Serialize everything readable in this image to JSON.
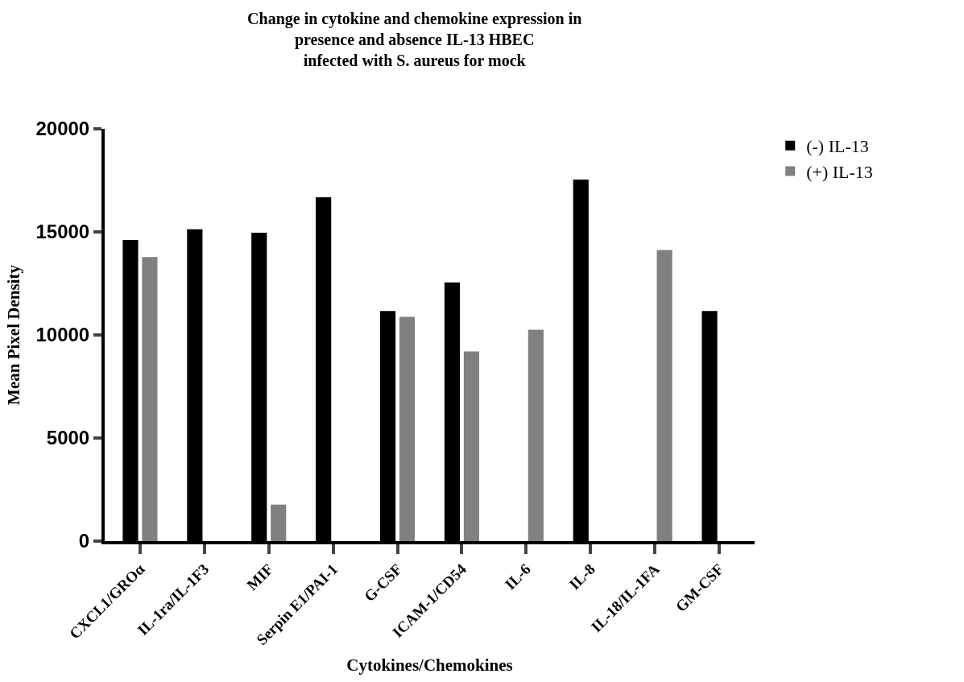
{
  "chart_data": {
    "type": "bar",
    "title": "Change in cytokine and chemokine expression in\npresence and absence IL-13 HBEC\ninfected with S. aureus for mock",
    "xlabel": "Cytokines/Chemokines",
    "ylabel": "Mean Pixel Density",
    "categories": [
      "CXCL1/GROα",
      "IL-1ra/IL-1F3",
      "MIF",
      "Serpin E1/PAI-1",
      "G-CSF",
      "ICAM-1/CD54",
      "IL-6",
      "IL-8",
      "IL-18/IL-1FA",
      "GM-CSF"
    ],
    "series": [
      {
        "name": "(-) IL-13",
        "color": "#000000",
        "values": [
          14610,
          15130,
          14960,
          16680,
          11160,
          12550,
          0,
          17540,
          0,
          11160
        ]
      },
      {
        "name": "(+) IL-13",
        "color": "#808080",
        "values": [
          13780,
          0,
          1770,
          0,
          10880,
          9200,
          10250,
          0,
          14120,
          0
        ]
      }
    ],
    "ylim": [
      0,
      20000
    ],
    "yticks": [
      0,
      5000,
      10000,
      15000,
      20000
    ],
    "legend": "top right"
  }
}
